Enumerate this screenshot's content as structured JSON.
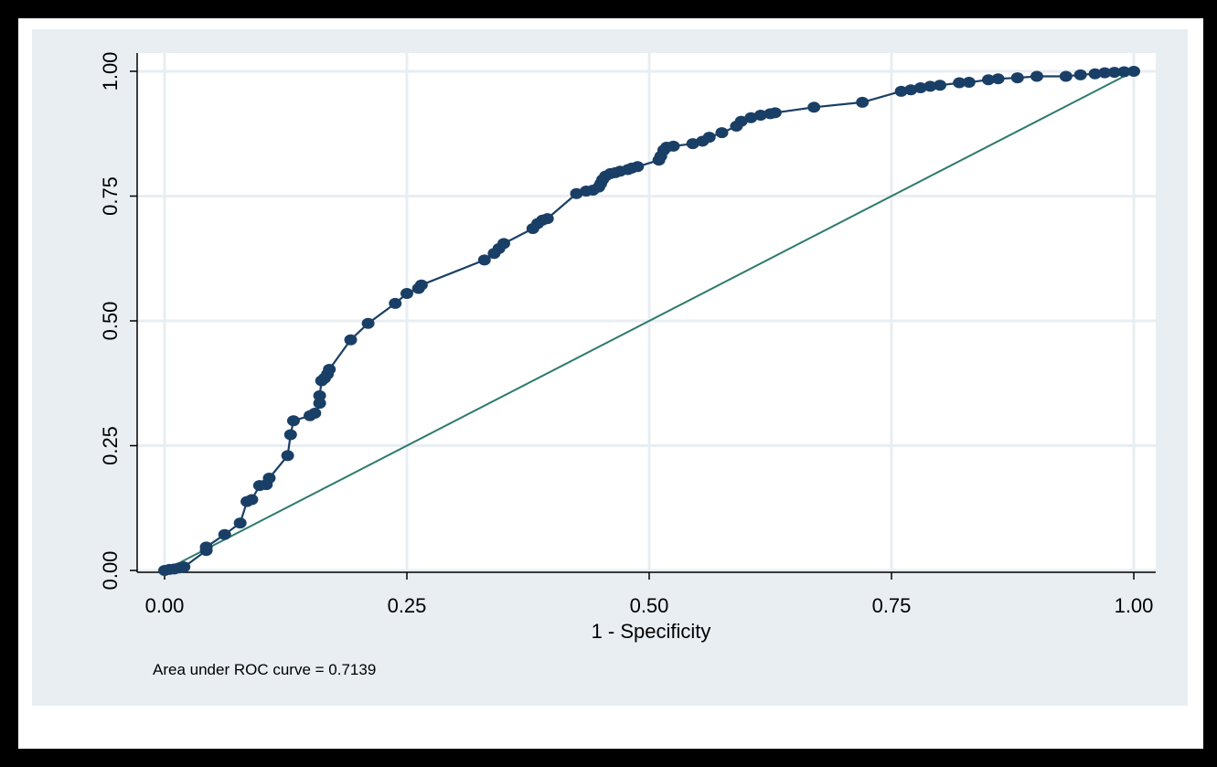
{
  "chart_data": {
    "type": "line",
    "xlabel": "1 - Specificity",
    "ylabel": "",
    "xlim": [
      0,
      1
    ],
    "ylim": [
      0,
      1
    ],
    "grid": true,
    "x_ticks": [
      "0.00",
      "0.25",
      "0.50",
      "0.75",
      "1.00"
    ],
    "y_ticks": [
      "0.00",
      "0.25",
      "0.50",
      "0.75",
      "1.00"
    ],
    "annotation": "Area under ROC curve = 0.7139",
    "colors": {
      "background": "#e8eef2",
      "plot_area": "#ffffff",
      "grid": "#e8eef2",
      "curve": "#1a3f66",
      "reference_line": "#2e7a6c"
    },
    "series": [
      {
        "kind": "roc-curve",
        "points": [
          [
            0.0,
            0.0
          ],
          [
            0.005,
            0.002
          ],
          [
            0.01,
            0.003
          ],
          [
            0.015,
            0.005
          ],
          [
            0.02,
            0.007
          ],
          [
            0.043,
            0.04
          ],
          [
            0.043,
            0.047
          ],
          [
            0.062,
            0.072
          ],
          [
            0.078,
            0.095
          ],
          [
            0.085,
            0.138
          ],
          [
            0.09,
            0.142
          ],
          [
            0.098,
            0.17
          ],
          [
            0.105,
            0.172
          ],
          [
            0.108,
            0.185
          ],
          [
            0.127,
            0.23
          ],
          [
            0.13,
            0.272
          ],
          [
            0.133,
            0.3
          ],
          [
            0.15,
            0.31
          ],
          [
            0.155,
            0.315
          ],
          [
            0.16,
            0.335
          ],
          [
            0.16,
            0.35
          ],
          [
            0.162,
            0.38
          ],
          [
            0.165,
            0.385
          ],
          [
            0.168,
            0.393
          ],
          [
            0.17,
            0.403
          ],
          [
            0.192,
            0.462
          ],
          [
            0.21,
            0.495
          ],
          [
            0.238,
            0.535
          ],
          [
            0.25,
            0.555
          ],
          [
            0.262,
            0.565
          ],
          [
            0.265,
            0.572
          ],
          [
            0.33,
            0.622
          ],
          [
            0.34,
            0.635
          ],
          [
            0.345,
            0.645
          ],
          [
            0.35,
            0.655
          ],
          [
            0.38,
            0.685
          ],
          [
            0.385,
            0.695
          ],
          [
            0.39,
            0.702
          ],
          [
            0.395,
            0.705
          ],
          [
            0.425,
            0.755
          ],
          [
            0.435,
            0.76
          ],
          [
            0.442,
            0.762
          ],
          [
            0.448,
            0.768
          ],
          [
            0.45,
            0.775
          ],
          [
            0.452,
            0.783
          ],
          [
            0.455,
            0.79
          ],
          [
            0.46,
            0.795
          ],
          [
            0.465,
            0.797
          ],
          [
            0.47,
            0.8
          ],
          [
            0.478,
            0.803
          ],
          [
            0.482,
            0.806
          ],
          [
            0.488,
            0.809
          ],
          [
            0.51,
            0.822
          ],
          [
            0.512,
            0.83
          ],
          [
            0.515,
            0.842
          ],
          [
            0.518,
            0.848
          ],
          [
            0.525,
            0.85
          ],
          [
            0.545,
            0.855
          ],
          [
            0.555,
            0.86
          ],
          [
            0.562,
            0.868
          ],
          [
            0.575,
            0.877
          ],
          [
            0.59,
            0.89
          ],
          [
            0.595,
            0.9
          ],
          [
            0.605,
            0.907
          ],
          [
            0.615,
            0.912
          ],
          [
            0.625,
            0.915
          ],
          [
            0.63,
            0.917
          ],
          [
            0.67,
            0.928
          ],
          [
            0.72,
            0.938
          ],
          [
            0.76,
            0.96
          ],
          [
            0.77,
            0.963
          ],
          [
            0.78,
            0.967
          ],
          [
            0.79,
            0.97
          ],
          [
            0.8,
            0.972
          ],
          [
            0.82,
            0.977
          ],
          [
            0.83,
            0.978
          ],
          [
            0.85,
            0.983
          ],
          [
            0.86,
            0.985
          ],
          [
            0.88,
            0.987
          ],
          [
            0.9,
            0.99
          ],
          [
            0.93,
            0.99
          ],
          [
            0.945,
            0.993
          ],
          [
            0.96,
            0.995
          ],
          [
            0.97,
            0.997
          ],
          [
            0.98,
            0.998
          ],
          [
            0.99,
            0.999
          ],
          [
            1.0,
            1.0
          ]
        ]
      },
      {
        "kind": "reference-diagonal",
        "points": [
          [
            0,
            0
          ],
          [
            1,
            1
          ]
        ]
      }
    ]
  }
}
